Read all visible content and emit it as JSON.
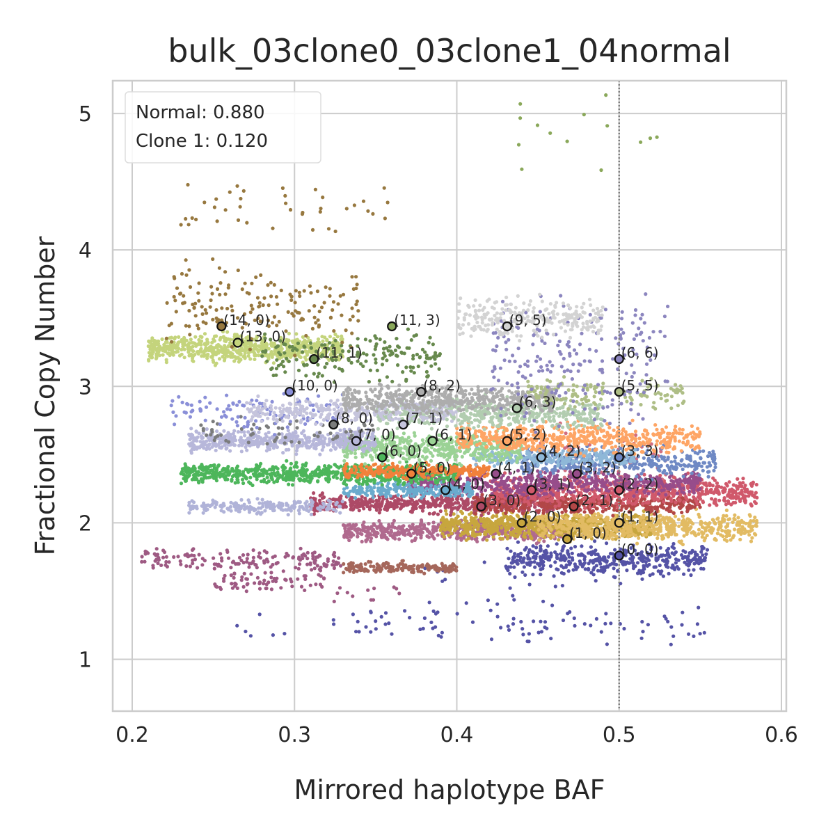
{
  "chart_data": {
    "type": "scatter",
    "title": "bulk_03clone0_03clone1_04normal",
    "xlabel": "Mirrored haplotype BAF",
    "ylabel": "Fractional Copy Number",
    "xlim": [
      0.188,
      0.603
    ],
    "ylim": [
      0.62,
      5.24
    ],
    "xticks": [
      0.2,
      0.3,
      0.4,
      0.5,
      0.6
    ],
    "xtick_labels": [
      "0.2",
      "0.3",
      "0.4",
      "0.5",
      "0.6"
    ],
    "yticks": [
      1,
      2,
      3,
      4,
      5
    ],
    "ytick_labels": [
      "1",
      "2",
      "3",
      "4",
      "5"
    ],
    "grid": true,
    "reference_line_x": 0.5,
    "legend": {
      "placement": "upper-left",
      "lines": [
        "Normal: 0.880",
        "Clone 1: 0.120"
      ]
    },
    "clusters": [
      {
        "color": "#5553a6",
        "x": [
          0.43,
          0.555
        ],
        "y_center": 1.73,
        "y_spread": 0.05,
        "n": 420
      },
      {
        "color": "#5553a6",
        "x": [
          0.32,
          0.555
        ],
        "y_center": 1.26,
        "y_spread": 0.07,
        "n": 90
      },
      {
        "color": "#5553a6",
        "x": [
          0.38,
          0.52
        ],
        "y_center": 1.58,
        "y_spread": 0.16,
        "n": 30
      },
      {
        "color": "#5553a6",
        "x": [
          0.26,
          0.3
        ],
        "y_center": 1.2,
        "y_spread": 0.05,
        "n": 6
      },
      {
        "color": "#9e5a83",
        "x": [
          0.205,
          0.33
        ],
        "y_center": 1.72,
        "y_spread": 0.04,
        "n": 160
      },
      {
        "color": "#9e5a83",
        "x": [
          0.25,
          0.32
        ],
        "y_center": 1.57,
        "y_spread": 0.04,
        "n": 70
      },
      {
        "color": "#9e5a83",
        "x": [
          0.32,
          0.37
        ],
        "y_center": 1.48,
        "y_spread": 0.03,
        "n": 12
      },
      {
        "color": "#a5675b",
        "x": [
          0.33,
          0.4
        ],
        "y_center": 1.67,
        "y_spread": 0.02,
        "n": 160
      },
      {
        "color": "#b06a8e",
        "x": [
          0.33,
          0.47
        ],
        "y_center": 1.94,
        "y_spread": 0.035,
        "n": 560
      },
      {
        "color": "#c7a63e",
        "x": [
          0.39,
          0.52
        ],
        "y_center": 1.98,
        "y_spread": 0.045,
        "n": 700
      },
      {
        "color": "#e2bb63",
        "x": [
          0.45,
          0.585
        ],
        "y_center": 1.97,
        "y_spread": 0.05,
        "n": 580
      },
      {
        "color": "#ad4a67",
        "x": [
          0.31,
          0.46
        ],
        "y_center": 2.14,
        "y_spread": 0.03,
        "n": 560
      },
      {
        "color": "#b24747",
        "x": [
          0.41,
          0.55
        ],
        "y_center": 2.14,
        "y_spread": 0.035,
        "n": 460
      },
      {
        "color": "#d0596b",
        "x": [
          0.42,
          0.585
        ],
        "y_center": 2.23,
        "y_spread": 0.05,
        "n": 680
      },
      {
        "color": "#d16e80",
        "x": [
          0.45,
          0.53
        ],
        "y_center": 2.42,
        "y_spread": 0.12,
        "n": 70
      },
      {
        "color": "#974d8b",
        "x": [
          0.37,
          0.55
        ],
        "y_center": 2.29,
        "y_spread": 0.04,
        "n": 620
      },
      {
        "color": "#6aabcd",
        "x": [
          0.33,
          0.41
        ],
        "y_center": 2.24,
        "y_spread": 0.025,
        "n": 220
      },
      {
        "color": "#b0b3d8",
        "x": [
          0.235,
          0.33
        ],
        "y_center": 2.12,
        "y_spread": 0.025,
        "n": 200
      },
      {
        "color": "#4db65b",
        "x": [
          0.23,
          0.4
        ],
        "y_center": 2.36,
        "y_spread": 0.035,
        "n": 700
      },
      {
        "color": "#f1813b",
        "x": [
          0.33,
          0.42
        ],
        "y_center": 2.38,
        "y_spread": 0.025,
        "n": 240
      },
      {
        "color": "#6f89c4",
        "x": [
          0.44,
          0.56
        ],
        "y_center": 2.45,
        "y_spread": 0.05,
        "n": 380
      },
      {
        "color": "#8fb8d8",
        "x": [
          0.41,
          0.51
        ],
        "y_center": 2.48,
        "y_spread": 0.03,
        "n": 250
      },
      {
        "color": "#9bd295",
        "x": [
          0.33,
          0.44
        ],
        "y_center": 2.55,
        "y_spread": 0.05,
        "n": 520
      },
      {
        "color": "#fea565",
        "x": [
          0.4,
          0.55
        ],
        "y_center": 2.62,
        "y_spread": 0.05,
        "n": 560
      },
      {
        "color": "#b7b7da",
        "x": [
          0.235,
          0.35
        ],
        "y_center": 2.6,
        "y_spread": 0.035,
        "n": 520
      },
      {
        "color": "#7b7c7c",
        "x": [
          0.24,
          0.35
        ],
        "y_center": 2.67,
        "y_spread": 0.05,
        "n": 60
      },
      {
        "color": "#8a8fd8",
        "x": [
          0.22,
          0.33
        ],
        "y_center": 2.82,
        "y_spread": 0.07,
        "n": 110
      },
      {
        "color": "#b2cdb0",
        "x": [
          0.35,
          0.49
        ],
        "y_center": 2.8,
        "y_spread": 0.05,
        "n": 480
      },
      {
        "color": "#c5c4dc",
        "x": [
          0.27,
          0.4
        ],
        "y_center": 2.82,
        "y_spread": 0.04,
        "n": 300
      },
      {
        "color": "#adadad",
        "x": [
          0.33,
          0.46
        ],
        "y_center": 2.9,
        "y_spread": 0.045,
        "n": 520
      },
      {
        "color": "#aebe86",
        "x": [
          0.44,
          0.54
        ],
        "y_center": 2.95,
        "y_spread": 0.06,
        "n": 140
      },
      {
        "color": "#c4d47c",
        "x": [
          0.21,
          0.33
        ],
        "y_center": 3.28,
        "y_spread": 0.045,
        "n": 700
      },
      {
        "color": "#67894d",
        "x": [
          0.28,
          0.39
        ],
        "y_center": 3.22,
        "y_spread": 0.08,
        "n": 180
      },
      {
        "color": "#8c86bf",
        "x": [
          0.42,
          0.53
        ],
        "y_center": 3.2,
        "y_spread": 0.22,
        "n": 220
      },
      {
        "color": "#d3d3d3",
        "x": [
          0.4,
          0.49
        ],
        "y_center": 3.5,
        "y_spread": 0.07,
        "n": 260
      },
      {
        "color": "#97783f",
        "x": [
          0.22,
          0.34
        ],
        "y_center": 3.6,
        "y_spread": 0.14,
        "n": 170
      },
      {
        "color": "#97783f",
        "x": [
          0.23,
          0.36
        ],
        "y_center": 4.3,
        "y_spread": 0.12,
        "n": 40
      },
      {
        "color": "#8aa85a",
        "x": [
          0.43,
          0.53
        ],
        "y_center": 4.85,
        "y_spread": 0.12,
        "n": 14
      }
    ],
    "states": [
      {
        "label": "(0, 0)",
        "x": 0.5,
        "y": 1.76,
        "color": "#5553a6"
      },
      {
        "label": "(1, 0)",
        "x": 0.468,
        "y": 1.88,
        "color": "#c7a63e"
      },
      {
        "label": "(1, 1)",
        "x": 0.5,
        "y": 2.0,
        "color": "#e2bb63"
      },
      {
        "label": "(2, 0)",
        "x": 0.44,
        "y": 2.0,
        "color": "#c7a63e"
      },
      {
        "label": "(2, 1)",
        "x": 0.472,
        "y": 2.12,
        "color": "#b24747"
      },
      {
        "label": "(2, 2)",
        "x": 0.5,
        "y": 2.24,
        "color": "#d0596b"
      },
      {
        "label": "(3, 0)",
        "x": 0.415,
        "y": 2.12,
        "color": "#ad4a67"
      },
      {
        "label": "(3, 1)",
        "x": 0.446,
        "y": 2.24,
        "color": "#d0596b"
      },
      {
        "label": "(3, 2)",
        "x": 0.474,
        "y": 2.36,
        "color": "#974d8b"
      },
      {
        "label": "(3, 3)",
        "x": 0.5,
        "y": 2.48,
        "color": "#6f89c4"
      },
      {
        "label": "(4, 0)",
        "x": 0.393,
        "y": 2.24,
        "color": "#6aabcd"
      },
      {
        "label": "(4, 1)",
        "x": 0.424,
        "y": 2.36,
        "color": "#974d8b"
      },
      {
        "label": "(4, 2)",
        "x": 0.452,
        "y": 2.48,
        "color": "#8fb8d8"
      },
      {
        "label": "(5, 0)",
        "x": 0.372,
        "y": 2.36,
        "color": "#f1813b"
      },
      {
        "label": "(5, 2)",
        "x": 0.431,
        "y": 2.6,
        "color": "#fea565"
      },
      {
        "label": "(5, 5)",
        "x": 0.5,
        "y": 2.96,
        "color": "#aebe86"
      },
      {
        "label": "(6, 0)",
        "x": 0.354,
        "y": 2.48,
        "color": "#4db65b"
      },
      {
        "label": "(6, 1)",
        "x": 0.385,
        "y": 2.6,
        "color": "#9bd295"
      },
      {
        "label": "(6, 3)",
        "x": 0.437,
        "y": 2.84,
        "color": "#b2cdb0"
      },
      {
        "label": "(6, 6)",
        "x": 0.5,
        "y": 3.2,
        "color": "#8c86bf"
      },
      {
        "label": "(7, 0)",
        "x": 0.338,
        "y": 2.6,
        "color": "#b7b7da"
      },
      {
        "label": "(7, 1)",
        "x": 0.367,
        "y": 2.72,
        "color": "#c5c4dc"
      },
      {
        "label": "(8, 0)",
        "x": 0.324,
        "y": 2.72,
        "color": "#7b7c7c"
      },
      {
        "label": "(8, 2)",
        "x": 0.378,
        "y": 2.96,
        "color": "#adadad"
      },
      {
        "label": "(9, 5)",
        "x": 0.431,
        "y": 3.44,
        "color": "#d3d3d3"
      },
      {
        "label": "(10, 0)",
        "x": 0.297,
        "y": 2.96,
        "color": "#8a8fd8"
      },
      {
        "label": "(11, 1)",
        "x": 0.312,
        "y": 3.2,
        "color": "#67894d"
      },
      {
        "label": "(11, 3)",
        "x": 0.36,
        "y": 3.44,
        "color": "#8aa85a"
      },
      {
        "label": "(13, 0)",
        "x": 0.265,
        "y": 3.32,
        "color": "#c4d47c"
      },
      {
        "label": "(14, 0)",
        "x": 0.255,
        "y": 3.44,
        "color": "#97783f"
      }
    ]
  }
}
